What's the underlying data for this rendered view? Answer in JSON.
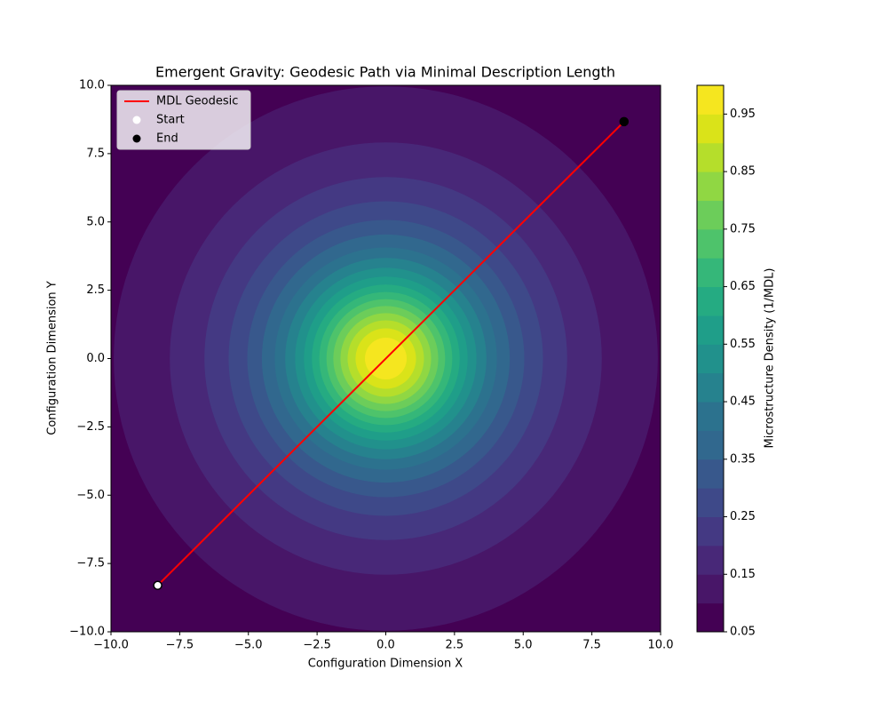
{
  "chart_data": {
    "type": "contour",
    "title": "Emergent Gravity: Geodesic Path via Minimal Description Length",
    "xlabel": "Configuration Dimension X",
    "ylabel": "Configuration Dimension Y",
    "colorbar_label": "Microstructure Density (1/MDL)",
    "xlim": [
      -10,
      10
    ],
    "ylim": [
      -10,
      10
    ],
    "xticks": [
      {
        "value": -10,
        "label": "−10.0"
      },
      {
        "value": -7.5,
        "label": "−7.5"
      },
      {
        "value": -5,
        "label": "−5.0"
      },
      {
        "value": -2.5,
        "label": "−2.5"
      },
      {
        "value": 0,
        "label": "0.0"
      },
      {
        "value": 2.5,
        "label": "2.5"
      },
      {
        "value": 5,
        "label": "5.0"
      },
      {
        "value": 7.5,
        "label": "7.5"
      },
      {
        "value": 10,
        "label": "10.0"
      }
    ],
    "yticks": [
      {
        "value": -10,
        "label": "−10.0"
      },
      {
        "value": -7.5,
        "label": "−7.5"
      },
      {
        "value": -5,
        "label": "−5.0"
      },
      {
        "value": -2.5,
        "label": "−2.5"
      },
      {
        "value": 0,
        "label": "0.0"
      },
      {
        "value": 2.5,
        "label": "2.5"
      },
      {
        "value": 5,
        "label": "5.0"
      },
      {
        "value": 7.5,
        "label": "7.5"
      },
      {
        "value": 10,
        "label": "10.0"
      }
    ],
    "levels": [
      0.05,
      0.1,
      0.15,
      0.2,
      0.25,
      0.3,
      0.35,
      0.4,
      0.45,
      0.5,
      0.55,
      0.6,
      0.65,
      0.7,
      0.75,
      0.8,
      0.85,
      0.9,
      0.95,
      1.0
    ],
    "colors": [
      "#440154",
      "#481668",
      "#482878",
      "#443983",
      "#3e4989",
      "#38588c",
      "#31688e",
      "#2c728e",
      "#26828e",
      "#21918c",
      "#1f9e89",
      "#25ab82",
      "#35b779",
      "#4ec36b",
      "#6ccd5a",
      "#90d743",
      "#b5de2b",
      "#dae319",
      "#f5e61f"
    ],
    "colorbar_lim": [
      0.05,
      1.0
    ],
    "colorbar_ticks": [
      0.05,
      0.15,
      0.25,
      0.35,
      0.45,
      0.55,
      0.65,
      0.75,
      0.85,
      0.95
    ],
    "center": [
      0,
      0
    ],
    "contour_radii": [
      9.9,
      7.86,
      6.6,
      5.72,
      5.04,
      4.51,
      4.04,
      3.66,
      3.3,
      2.98,
      2.69,
      2.42,
      2.16,
      1.91,
      1.65,
      1.39,
      1.1,
      0.76
    ],
    "series": [
      {
        "name": "MDL Geodesic",
        "kind": "line",
        "color": "#ff0000",
        "x": [
          -8.3,
          8.67
        ],
        "y": [
          -8.3,
          8.67
        ]
      },
      {
        "name": "Start",
        "kind": "scatter",
        "color": "#ffffff",
        "x": [
          -8.3
        ],
        "y": [
          -8.3
        ]
      },
      {
        "name": "End",
        "kind": "scatter",
        "color": "#000000",
        "x": [
          8.67
        ],
        "y": [
          8.67
        ]
      }
    ],
    "legend": "upper left"
  }
}
